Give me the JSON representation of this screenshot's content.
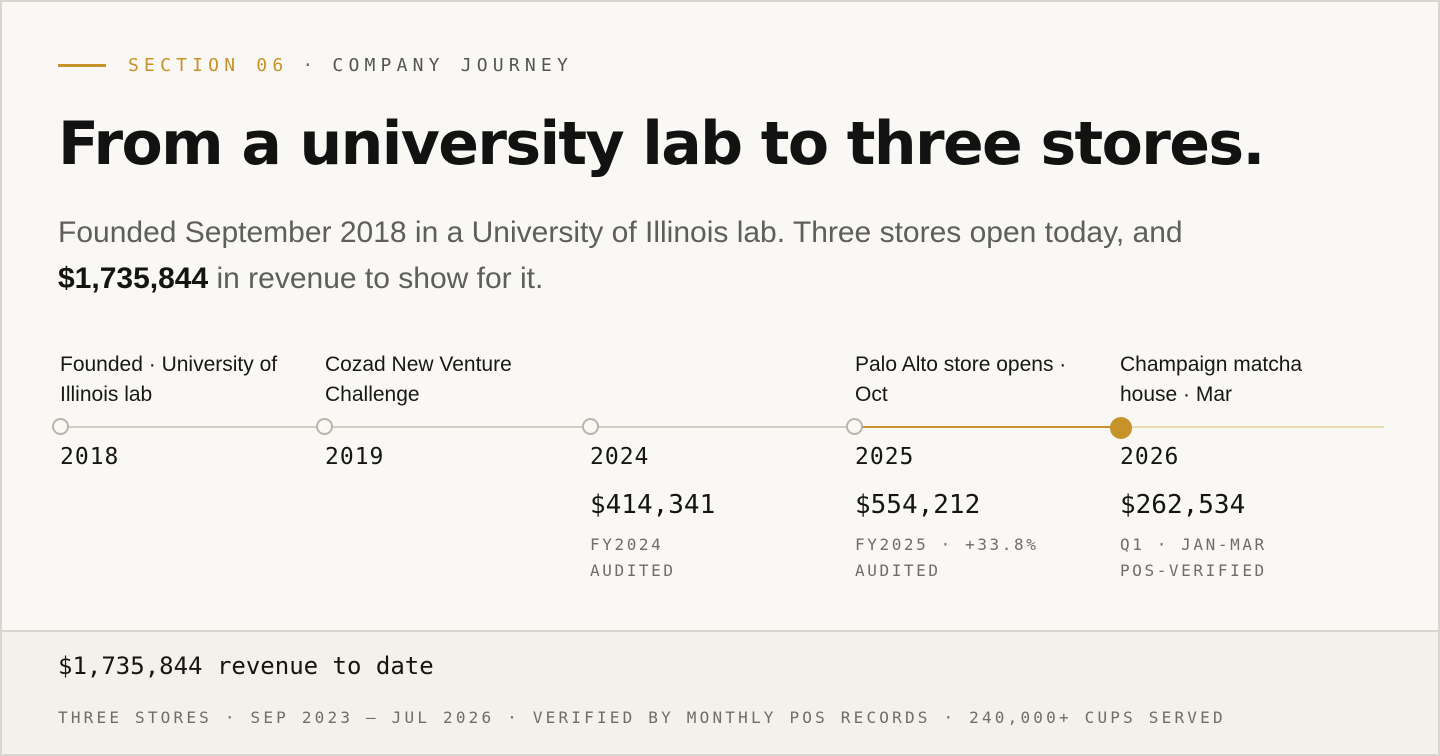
{
  "eyebrow": {
    "section": "SECTION 06",
    "separator": "·",
    "label": "COMPANY JOURNEY"
  },
  "title": "From a university lab to three stores.",
  "lede": {
    "text_before": "Founded September 2018 in a University of Illinois lab. Three stores open today, and",
    "highlight": "$1,735,844",
    "text_after": "in revenue to show for it."
  },
  "timeline": {
    "milestones": [
      {
        "year": "2018",
        "event": "Founded · University of Illinois lab",
        "amount": "",
        "note_line1": "",
        "note_line2": "",
        "state": "past"
      },
      {
        "year": "2019",
        "event": "Cozad New Venture Challenge",
        "amount": "",
        "note_line1": "",
        "note_line2": "",
        "state": "past"
      },
      {
        "year": "2024",
        "event": "",
        "amount": "$414,341",
        "note_line1": "FY2024",
        "note_line2": "AUDITED",
        "state": "past"
      },
      {
        "year": "2025",
        "event": "Palo Alto store opens · Oct",
        "amount": "$554,212",
        "note_line1": "FY2025 · +33.8%",
        "note_line2": "AUDITED",
        "state": "past"
      },
      {
        "year": "2026",
        "event": "Champaign matcha house · Mar",
        "amount": "$262,534",
        "note_line1": "Q1 · JAN-MAR",
        "note_line2": "POS-VERIFIED",
        "state": "current"
      }
    ]
  },
  "footer": {
    "total": "$1,735,844 revenue to date",
    "meta": "THREE STORES · SEP 2023 – JUL 2026 · VERIFIED BY MONTHLY POS RECORDS · 240,000+ CUPS SERVED"
  },
  "colors": {
    "accent": "#c8922a",
    "background": "#f9f8f4",
    "footer_background": "#f3f1ea"
  }
}
